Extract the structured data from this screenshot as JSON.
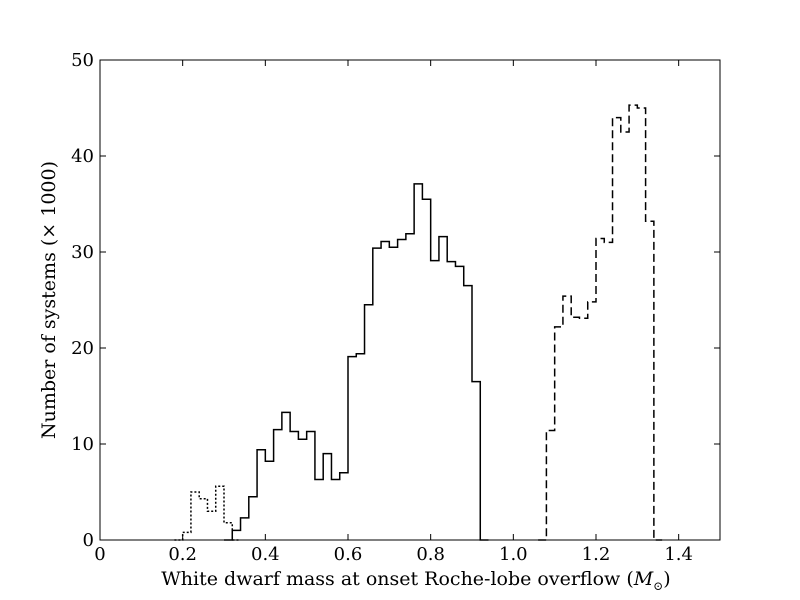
{
  "chart_data": {
    "type": "histogram-step",
    "xlabel": "White dwarf mass at onset Roche-lobe overflow",
    "xlabel_unit": "M",
    "xlabel_unit_sub": "⊙",
    "ylabel": "Number of systems (× 1000)",
    "xlim": [
      0,
      1.5
    ],
    "ylim": [
      0,
      50
    ],
    "xticks": [
      0,
      0.2,
      0.4,
      0.6,
      0.8,
      1.0,
      1.2,
      1.4
    ],
    "xtick_labels": [
      "0",
      "0.2",
      "0.4",
      "0.6",
      "0.8",
      "1.0",
      "1.2",
      "1.4"
    ],
    "yticks": [
      0,
      10,
      20,
      30,
      40,
      50
    ],
    "ytick_labels": [
      "0",
      "10",
      "20",
      "30",
      "40",
      "50"
    ],
    "bin_width": 0.02,
    "grid": false,
    "legend": false,
    "series": [
      {
        "style": "dotted",
        "bin_start": 0.18,
        "values": [
          0,
          0.8,
          5.0,
          4.3,
          3.0,
          5.6,
          1.8,
          0
        ]
      },
      {
        "style": "solid",
        "bin_start": 0.3,
        "values": [
          0,
          1.0,
          2.3,
          4.5,
          9.4,
          8.2,
          11.5,
          13.3,
          11.3,
          10.5,
          11.3,
          6.3,
          9.0,
          6.3,
          7.0,
          19.1,
          19.4,
          24.5,
          30.4,
          31.1,
          30.5,
          31.3,
          31.9,
          37.1,
          35.5,
          29.1,
          31.6,
          29.0,
          28.5,
          26.5,
          16.5,
          0
        ]
      },
      {
        "style": "dashed",
        "bin_start": 1.06,
        "values": [
          0,
          11.4,
          22.2,
          25.4,
          23.2,
          23.1,
          24.8,
          31.4,
          31.0,
          44.0,
          42.5,
          45.3,
          45.0,
          33.2,
          0
        ]
      }
    ]
  }
}
